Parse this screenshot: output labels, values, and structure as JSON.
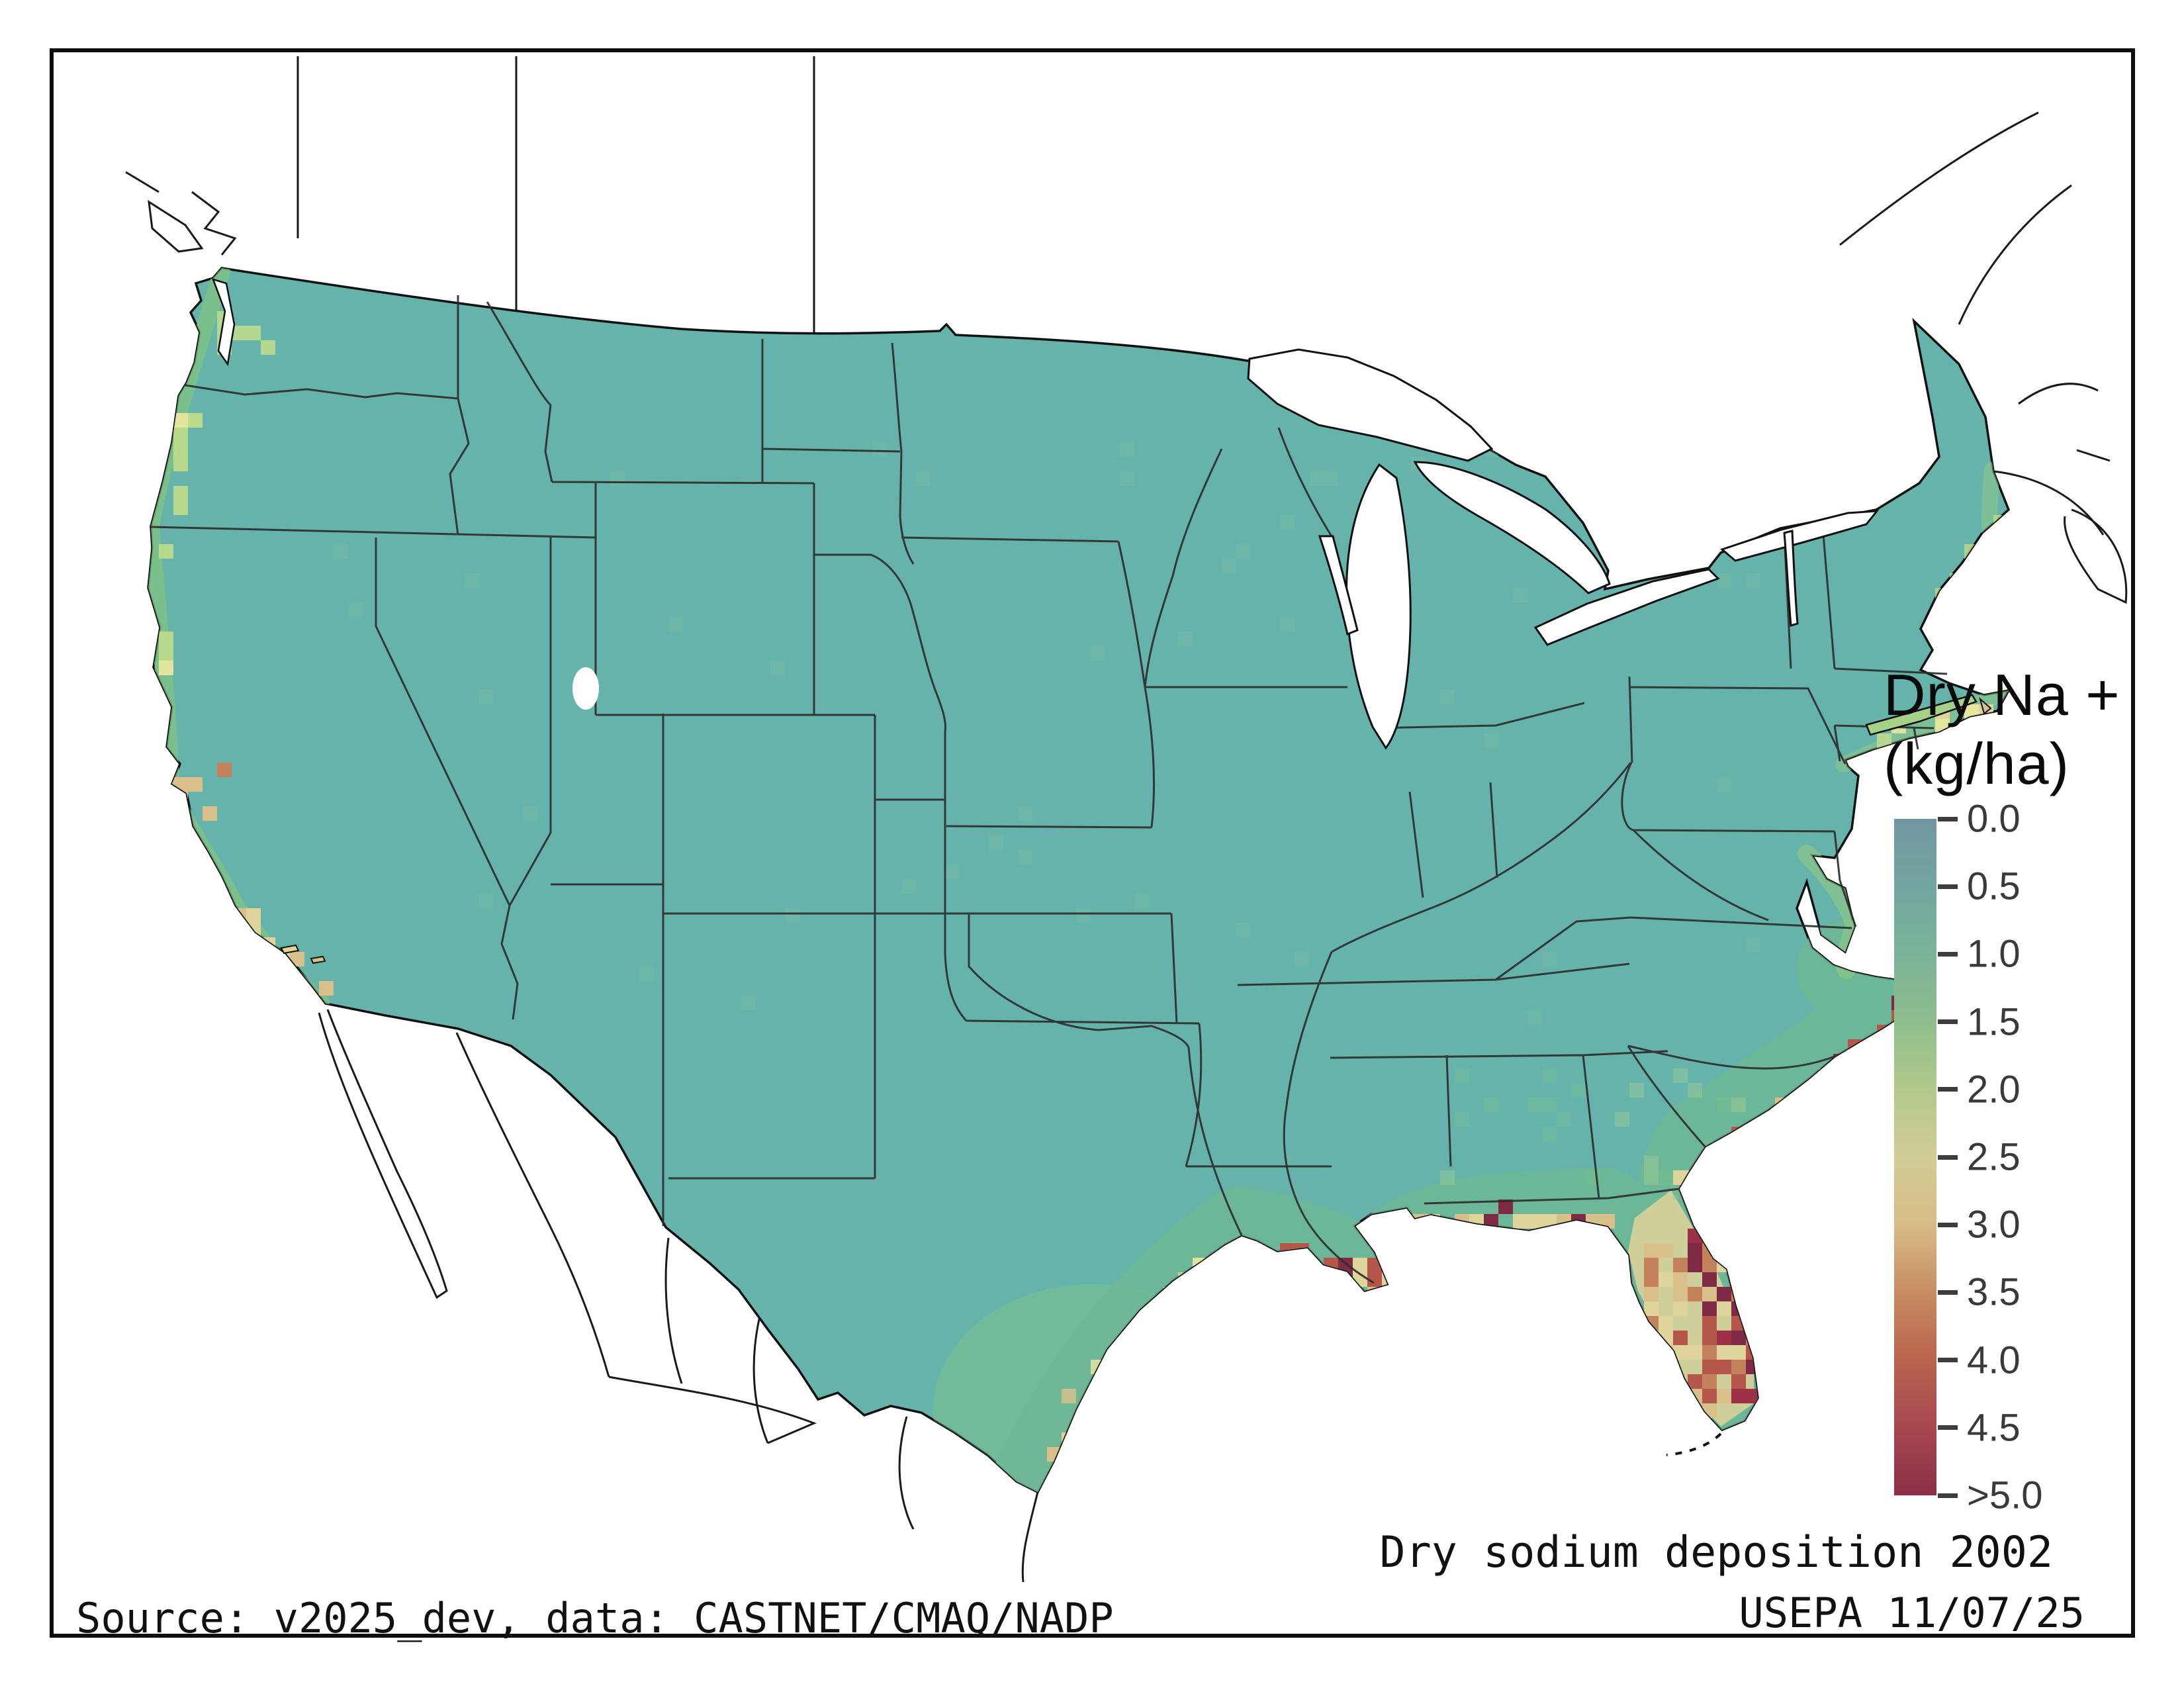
{
  "legend": {
    "title_line1": "Dry Na +",
    "title_line2": "(kg/ha)",
    "ticks": [
      "0.0",
      "0.5",
      "1.0",
      "1.5",
      "2.0",
      "2.5",
      "3.0",
      "3.5",
      "4.0",
      "4.5",
      ">5.0"
    ],
    "gradient": [
      "#7296A1",
      "#73A6A0",
      "#7BB399",
      "#8FBE8D",
      "#B1C98C",
      "#D2CC96",
      "#D8BC85",
      "#C68D61",
      "#BA634E",
      "#A74850",
      "#8C2F47"
    ]
  },
  "caption": {
    "title": "Dry sodium deposition 2002",
    "agency_date": "USEPA 11/07/25",
    "source": "Source: v2025_dev, data: CASTNET/CMAQ/NADP"
  },
  "map": {
    "base_fill": "#66B3AC",
    "water_fill": "#FFFFFF",
    "outline_color": "#111111",
    "state_line_color": "#2E2E2E",
    "palette": {
      "maroon": "#7E2A44",
      "darkred": "#9C3148",
      "red": "#B4564A",
      "orange": "#C4825C",
      "tan": "#D9C08A",
      "khaki": "#DFD49B",
      "yellow": "#E8E79F",
      "lightgreen": "#BCDB8C",
      "green": "#7FC386",
      "mottle": "#74BCA4"
    },
    "cell_size": 22,
    "hotspots": [
      {
        "name": "florida-east-coast",
        "type": "line",
        "p": [
          2430,
          1600,
          2515,
          1855
        ],
        "n": 60,
        "spread": 34,
        "op": 1,
        "w": {
          "maroon": 45,
          "darkred": 20,
          "red": 20,
          "tan": 15
        }
      },
      {
        "name": "florida-interior",
        "type": "box",
        "p": [
          2345,
          1620,
          160,
          250
        ],
        "n": 75,
        "op": 1,
        "w": {
          "tan": 35,
          "khaki": 30,
          "orange": 20,
          "red": 15
        }
      },
      {
        "name": "florida-panhandle-coast",
        "type": "line",
        "p": [
          2030,
          1578,
          2295,
          1588
        ],
        "n": 20,
        "spread": 14,
        "op": 1,
        "w": {
          "khaki": 40,
          "tan": 30,
          "red": 20,
          "maroon": 10
        }
      },
      {
        "name": "texas-coast",
        "type": "line",
        "p": [
          1445,
          1985,
          1735,
          1628
        ],
        "n": 50,
        "spread": 26,
        "op": 1,
        "w": {
          "red": 22,
          "maroon": 20,
          "tan": 30,
          "khaki": 28
        }
      },
      {
        "name": "texas-inland-yellow",
        "type": "line",
        "p": [
          1470,
          1920,
          1700,
          1660
        ],
        "n": 25,
        "spread": 55,
        "op": 0.8,
        "w": {
          "khaki": 50,
          "yellow": 30,
          "tan": 20
        }
      },
      {
        "name": "louisiana-coast",
        "type": "line",
        "p": [
          1795,
          1628,
          1955,
          1680
        ],
        "n": 22,
        "spread": 18,
        "op": 1,
        "w": {
          "red": 25,
          "maroon": 20,
          "tan": 30,
          "khaki": 25
        }
      },
      {
        "name": "mississippi-alabama-coast",
        "type": "line",
        "p": [
          1950,
          1580,
          2030,
          1582
        ],
        "n": 10,
        "spread": 10,
        "op": 1,
        "w": {
          "khaki": 50,
          "tan": 35,
          "red": 15
        }
      },
      {
        "name": "north-carolina-capes",
        "type": "line",
        "p": [
          2645,
          1342,
          2750,
          1245
        ],
        "n": 15,
        "spread": 14,
        "op": 1,
        "w": {
          "tan": 40,
          "red": 30,
          "maroon": 30
        }
      },
      {
        "name": "south-carolina-coast",
        "type": "line",
        "p": [
          2450,
          1478,
          2625,
          1368
        ],
        "n": 12,
        "spread": 10,
        "op": 1,
        "w": {
          "khaki": 50,
          "tan": 30,
          "red": 20
        }
      },
      {
        "name": "georgia-coast",
        "type": "line",
        "p": [
          2408,
          1540,
          2448,
          1482
        ],
        "n": 6,
        "spread": 8,
        "op": 1,
        "w": {
          "khaki": 60,
          "tan": 40
        }
      },
      {
        "name": "san-francisco-bay",
        "type": "box",
        "p": [
          115,
          895,
          80,
          105
        ],
        "n": 8,
        "op": 1,
        "w": {
          "tan": 50,
          "orange": 30,
          "red": 20
        }
      },
      {
        "name": "socal-coast",
        "type": "line",
        "p": [
          228,
          1118,
          345,
          1240
        ],
        "n": 8,
        "spread": 8,
        "op": 1,
        "w": {
          "khaki": 60,
          "tan": 40
        }
      },
      {
        "name": "pacific-northwest-coast",
        "type": "line",
        "p": [
          140,
          350,
          102,
          755
        ],
        "n": 12,
        "spread": 8,
        "op": 0.95,
        "w": {
          "lightgreen": 60,
          "yellow": 40
        }
      },
      {
        "name": "puget-sound",
        "type": "box",
        "p": [
          185,
          205,
          80,
          95
        ],
        "n": 6,
        "op": 0.9,
        "w": {
          "lightgreen": 60,
          "yellow": 40
        }
      },
      {
        "name": "cape-cod",
        "type": "box",
        "p": [
          2800,
          788,
          100,
          45
        ],
        "n": 5,
        "op": 1,
        "w": {
          "khaki": 60,
          "tan": 40
        }
      },
      {
        "name": "long-island",
        "type": "line",
        "p": [
          2700,
          852,
          2840,
          812
        ],
        "n": 5,
        "spread": 6,
        "op": 0.9,
        "w": {
          "lightgreen": 50,
          "yellow": 50
        }
      },
      {
        "name": "maine-coast",
        "type": "line",
        "p": [
          2800,
          642,
          2900,
          520
        ],
        "n": 8,
        "spread": 10,
        "op": 0.8,
        "w": {
          "lightgreen": 60,
          "green": 40
        }
      },
      {
        "name": "interior-mottle",
        "type": "box",
        "p": [
          300,
          400,
          2300,
          900
        ],
        "n": 45,
        "op": 0.45,
        "w": {
          "mottle": 100
        }
      },
      {
        "name": "southeast-green-mottle",
        "type": "box",
        "p": [
          2050,
          1350,
          500,
          200
        ],
        "n": 25,
        "op": 0.3,
        "w": {
          "green": 60,
          "lightgreen": 40
        }
      }
    ]
  }
}
